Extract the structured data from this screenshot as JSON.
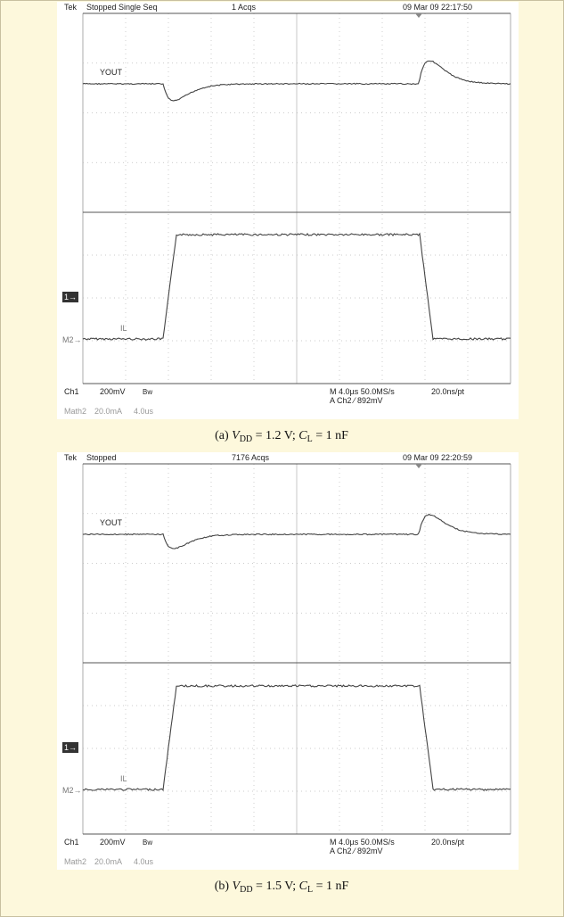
{
  "panels": [
    {
      "header": {
        "brand": "Tek",
        "status": "Stopped  Single Seq",
        "acqs": "1 Acqs",
        "timestamp": "09 Mar 09 22:17:50"
      },
      "traces": {
        "ch1": "YOUT",
        "math": "IL"
      },
      "markers": {
        "ch1": "1→",
        "math": "M2→"
      },
      "footer": {
        "ch1": "Ch1",
        "ch1_scale": "200mV",
        "bw": "Bw",
        "timebase": "M 4.0µs 50.0MS/s",
        "sample": "20.0ns/pt",
        "trigger": "A  Ch2  ⁄  892mV",
        "math": "Math2",
        "math_scale": "20.0mA",
        "math_time": "4.0us"
      },
      "caption": {
        "prefix": "(a) ",
        "v": "V",
        "v_sub": "DD",
        "v_rest": " = 1.2 V; ",
        "c": "C",
        "c_sub": "L",
        "c_rest": " = 1 nF"
      }
    },
    {
      "header": {
        "brand": "Tek",
        "status": "Stopped",
        "acqs": "7176 Acqs",
        "timestamp": "09 Mar 09 22:20:59"
      },
      "traces": {
        "ch1": "YOUT",
        "math": "IL"
      },
      "markers": {
        "ch1": "1→",
        "math": "M2→"
      },
      "footer": {
        "ch1": "Ch1",
        "ch1_scale": "200mV",
        "bw": "Bw",
        "timebase": "M 4.0µs 50.0MS/s",
        "sample": "20.0ns/pt",
        "trigger": "A  Ch2  ⁄  892mV",
        "math": "Math2",
        "math_scale": "20.0mA",
        "math_time": "4.0us"
      },
      "caption": {
        "prefix": "(b) ",
        "v": "V",
        "v_sub": "DD",
        "v_rest": " = 1.5 V; ",
        "c": "C",
        "c_sub": "L",
        "c_rest": " = 1 nF"
      }
    }
  ]
}
